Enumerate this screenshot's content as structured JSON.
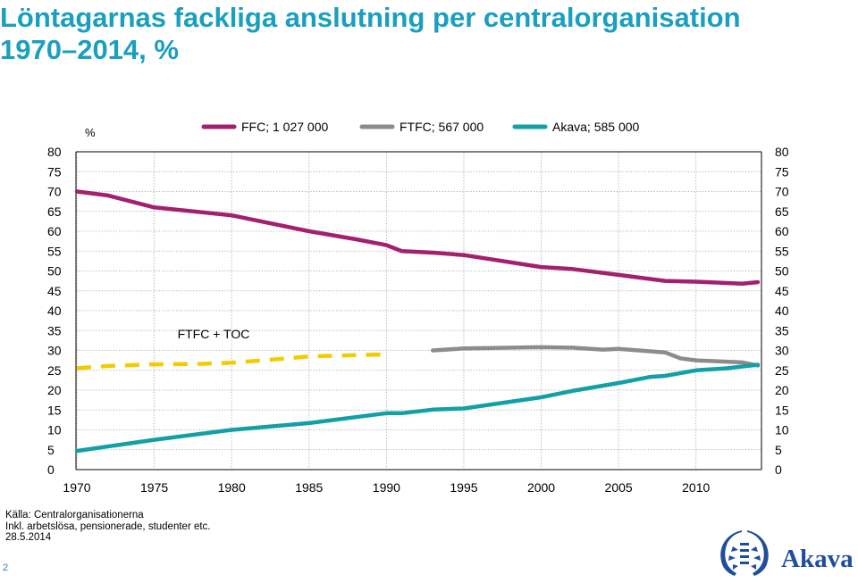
{
  "title": {
    "line1": "Löntagarnas fackliga anslutning per centralorganisation",
    "line2": "1970–2014, %"
  },
  "chart_data": {
    "type": "line",
    "ylabel": "%",
    "xlim": [
      1970,
      2014
    ],
    "ylim": [
      0,
      80
    ],
    "x_ticks": [
      1970,
      1975,
      1980,
      1985,
      1990,
      1995,
      2000,
      2005,
      2010
    ],
    "y_ticks": [
      0,
      5,
      10,
      15,
      20,
      25,
      30,
      35,
      40,
      45,
      50,
      55,
      60,
      65,
      70,
      75,
      80
    ],
    "grid": "dotted",
    "legend_position": "top",
    "series": [
      {
        "name": "FFC; 1 027 000",
        "color": "#a3206f",
        "style": "solid",
        "x": [
          1970,
          1972,
          1975,
          1980,
          1985,
          1988,
          1990,
          1991,
          1993,
          1995,
          2000,
          2002,
          2005,
          2008,
          2010,
          2013,
          2014
        ],
        "y": [
          70,
          69,
          66,
          64,
          60,
          58,
          56.5,
          55,
          54.6,
          54,
          51,
          50.5,
          49,
          47.5,
          47.3,
          46.8,
          47.2
        ]
      },
      {
        "name": "FTFC; 567 000",
        "color": "#8c8c8c",
        "style": "solid",
        "x": [
          1993,
          1995,
          2000,
          2002,
          2004,
          2005,
          2008,
          2009,
          2010,
          2013,
          2014
        ],
        "y": [
          30,
          30.5,
          30.8,
          30.7,
          30.2,
          30.4,
          29.5,
          28,
          27.5,
          27,
          26.2
        ]
      },
      {
        "name": "Akava; 585 000",
        "color": "#12a0a6",
        "style": "solid",
        "x": [
          1970,
          1975,
          1980,
          1985,
          1990,
          1991,
          1993,
          1995,
          2000,
          2002,
          2005,
          2007,
          2008,
          2010,
          2012,
          2014
        ],
        "y": [
          4.7,
          7.5,
          10,
          11.7,
          14.2,
          14.2,
          15.1,
          15.4,
          18.2,
          19.8,
          21.8,
          23.3,
          23.6,
          25,
          25.5,
          26.4
        ]
      },
      {
        "name": "FTFC + TOC",
        "color": "#f2cc00",
        "style": "dashed",
        "x": [
          1970,
          1972,
          1975,
          1978,
          1980,
          1983,
          1985,
          1988,
          1990
        ],
        "y": [
          25.5,
          26.1,
          26.5,
          26.6,
          26.9,
          27.8,
          28.5,
          28.8,
          29
        ]
      }
    ],
    "annotations": [
      {
        "text": "FTFC + TOC",
        "x": 1976.5,
        "y": 33
      }
    ]
  },
  "source": {
    "line1": "Källa: Centralorganisationerna",
    "line2": "Inkl. arbetslösa, pensionerade, studenter etc.",
    "line3": "28.5.2014"
  },
  "page_number": "2",
  "logo": {
    "text": "Akava",
    "color": "#1f4e9c",
    "icon": "laurel-wreath-icon"
  }
}
